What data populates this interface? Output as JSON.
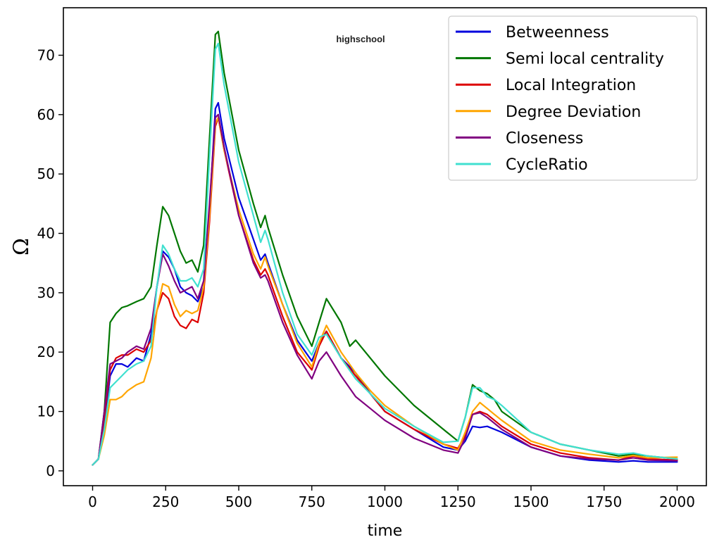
{
  "chart_data": {
    "type": "line",
    "title": "highschool",
    "xlabel": "time",
    "ylabel": "Ω",
    "xlim": [
      -100,
      2100
    ],
    "ylim": [
      -2.5,
      78
    ],
    "xticks": [
      0,
      250,
      500,
      750,
      1000,
      1250,
      1500,
      1750,
      2000
    ],
    "xtick_labels": [
      "0",
      "250",
      "500",
      "750",
      "1000",
      "1250",
      "1500",
      "1750",
      "2000"
    ],
    "yticks": [
      0,
      10,
      20,
      30,
      40,
      50,
      60,
      70
    ],
    "ytick_labels": [
      "0",
      "10",
      "20",
      "30",
      "40",
      "50",
      "60",
      "70"
    ],
    "grid": false,
    "legend_position": "top-right",
    "series": [
      {
        "name": "Betweenness",
        "color": "#0000dd",
        "x": [
          0,
          20,
          40,
          60,
          80,
          100,
          120,
          150,
          175,
          200,
          220,
          240,
          260,
          280,
          300,
          320,
          340,
          360,
          380,
          400,
          420,
          430,
          450,
          500,
          550,
          575,
          590,
          600,
          650,
          700,
          750,
          775,
          800,
          850,
          900,
          950,
          1000,
          1100,
          1200,
          1250,
          1275,
          1300,
          1325,
          1350,
          1375,
          1400,
          1500,
          1600,
          1700,
          1800,
          1850,
          1900,
          2000
        ],
        "values": [
          1,
          2,
          8,
          16,
          18,
          18,
          17.5,
          19,
          18.5,
          23,
          31,
          37,
          36,
          34,
          31,
          30,
          29.5,
          28.5,
          31,
          44,
          61,
          62,
          56,
          46,
          39,
          35.5,
          36.5,
          35,
          28,
          22,
          18.5,
          21.5,
          23.5,
          19,
          16.5,
          13,
          10,
          7,
          4,
          3.5,
          5,
          7.5,
          7.3,
          7.5,
          7,
          6.5,
          4,
          2.5,
          1.8,
          1.5,
          1.7,
          1.5,
          1.5
        ]
      },
      {
        "name": "Semi local centrality",
        "color": "#007700",
        "x": [
          0,
          20,
          40,
          60,
          80,
          100,
          120,
          150,
          175,
          200,
          220,
          240,
          260,
          280,
          300,
          320,
          340,
          360,
          380,
          400,
          420,
          430,
          450,
          500,
          550,
          575,
          590,
          600,
          650,
          700,
          750,
          775,
          800,
          850,
          880,
          900,
          950,
          1000,
          1100,
          1200,
          1250,
          1275,
          1300,
          1325,
          1350,
          1375,
          1400,
          1500,
          1600,
          1700,
          1800,
          1850,
          1900,
          2000
        ],
        "values": [
          1,
          2,
          10,
          25,
          26.5,
          27.5,
          27.8,
          28.5,
          29,
          31,
          38,
          44.5,
          43,
          40,
          37,
          35,
          35.5,
          33.5,
          38,
          56,
          73.5,
          74,
          67,
          54,
          45,
          41,
          43,
          41,
          33,
          26,
          21,
          25,
          29,
          25,
          21,
          22,
          19,
          16,
          11,
          7,
          5,
          9,
          14.5,
          13.5,
          13,
          12,
          10,
          6.5,
          4.5,
          3.5,
          2.5,
          2.8,
          2.5,
          2
        ]
      },
      {
        "name": "Local Integration",
        "color": "#dd0000",
        "x": [
          0,
          20,
          40,
          60,
          80,
          100,
          120,
          150,
          175,
          200,
          220,
          240,
          260,
          280,
          300,
          320,
          340,
          360,
          380,
          400,
          420,
          430,
          450,
          500,
          550,
          575,
          590,
          600,
          650,
          700,
          750,
          775,
          800,
          850,
          900,
          950,
          1000,
          1100,
          1200,
          1250,
          1275,
          1300,
          1325,
          1350,
          1375,
          1400,
          1500,
          1600,
          1700,
          1800,
          1850,
          1900,
          2000
        ],
        "values": [
          1,
          2,
          9,
          17,
          19,
          19.5,
          19.5,
          20.5,
          20,
          22,
          27,
          30,
          29,
          26,
          24.5,
          24,
          25.5,
          25,
          30,
          42,
          58,
          59.5,
          54,
          43,
          35.5,
          33,
          34,
          33,
          26,
          20,
          17,
          21,
          23.5,
          19,
          16,
          13,
          10,
          7,
          4.5,
          3.8,
          6,
          9.5,
          10,
          9.5,
          8.5,
          7.5,
          4.5,
          3,
          2.2,
          1.8,
          2.5,
          2,
          1.8
        ]
      },
      {
        "name": "Degree Deviation",
        "color": "#ffa500",
        "x": [
          0,
          20,
          40,
          60,
          80,
          100,
          120,
          150,
          175,
          200,
          220,
          240,
          260,
          280,
          300,
          320,
          340,
          360,
          380,
          400,
          420,
          430,
          450,
          500,
          550,
          575,
          590,
          600,
          650,
          700,
          750,
          775,
          800,
          850,
          900,
          950,
          1000,
          1100,
          1200,
          1250,
          1275,
          1300,
          1325,
          1350,
          1375,
          1400,
          1500,
          1600,
          1700,
          1800,
          1850,
          1900,
          2000
        ],
        "values": [
          1,
          2,
          6,
          12,
          12,
          12.5,
          13.5,
          14.5,
          15,
          19,
          27,
          31.5,
          31,
          28,
          26,
          27,
          26.5,
          27,
          31,
          43,
          58.5,
          59.5,
          54,
          44,
          36.5,
          34,
          36,
          34.5,
          28,
          21.5,
          17.5,
          21.5,
          24.5,
          20,
          16.5,
          13.5,
          11,
          7.5,
          4.5,
          3.5,
          6.5,
          10,
          11.5,
          10.5,
          9.5,
          8.5,
          5,
          3.5,
          2.8,
          2.2,
          2.6,
          2.2,
          2.3
        ]
      },
      {
        "name": "Closeness",
        "color": "#800080",
        "x": [
          0,
          20,
          40,
          60,
          80,
          100,
          120,
          150,
          175,
          200,
          220,
          240,
          260,
          280,
          300,
          320,
          340,
          360,
          380,
          400,
          420,
          430,
          450,
          500,
          550,
          575,
          590,
          600,
          650,
          700,
          750,
          775,
          800,
          850,
          900,
          950,
          1000,
          1100,
          1200,
          1250,
          1275,
          1300,
          1325,
          1350,
          1375,
          1400,
          1500,
          1600,
          1700,
          1800,
          1850,
          1900,
          2000
        ],
        "values": [
          1,
          2,
          10,
          18,
          18.5,
          19,
          20,
          21,
          20.5,
          24,
          31,
          36.5,
          34.5,
          32,
          30,
          30.5,
          31,
          29,
          32,
          45,
          59.5,
          60,
          54.5,
          43,
          35,
          32.5,
          33,
          32,
          25,
          19.5,
          15.5,
          18.5,
          20,
          16,
          12.5,
          10.5,
          8.5,
          5.5,
          3.5,
          3,
          5.5,
          9.5,
          9.8,
          9,
          8,
          7,
          4,
          2.5,
          2,
          1.8,
          2.2,
          1.8,
          1.7
        ]
      },
      {
        "name": "CycleRatio",
        "color": "#40e0d0",
        "x": [
          0,
          20,
          40,
          60,
          80,
          100,
          120,
          150,
          175,
          200,
          220,
          240,
          260,
          280,
          300,
          320,
          340,
          360,
          380,
          400,
          420,
          430,
          450,
          500,
          550,
          575,
          590,
          600,
          650,
          700,
          750,
          775,
          800,
          850,
          900,
          950,
          1000,
          1100,
          1200,
          1250,
          1275,
          1300,
          1325,
          1350,
          1375,
          1400,
          1500,
          1600,
          1700,
          1800,
          1850,
          1900,
          2000
        ],
        "values": [
          1,
          2,
          7,
          14,
          15,
          16,
          17,
          18,
          18.5,
          21,
          31,
          38,
          36.5,
          34,
          32,
          32,
          32.5,
          31,
          34,
          53,
          71,
          72,
          65,
          52,
          43,
          38.5,
          40.5,
          39,
          30,
          23,
          19.5,
          22.5,
          23,
          19,
          15.5,
          13,
          10.5,
          7.5,
          4.8,
          5,
          9,
          14,
          14,
          12.5,
          12,
          11,
          6.5,
          4.5,
          3.5,
          2.8,
          3,
          2.5,
          2
        ]
      }
    ]
  }
}
